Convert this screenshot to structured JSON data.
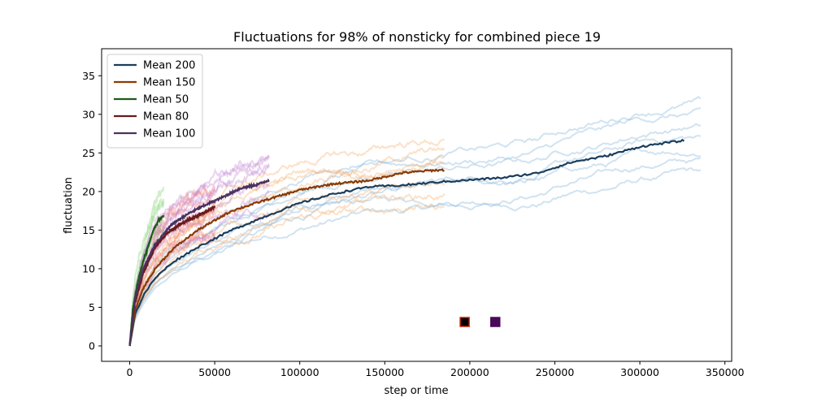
{
  "chart_data": {
    "type": "line",
    "title": "Fluctuations for 98% of nonsticky for combined piece 19",
    "xlabel": "step or time",
    "ylabel": "fluctuation",
    "xlim": [
      -16500,
      354000
    ],
    "ylim": [
      -2,
      38.5
    ],
    "xticks": [
      0,
      50000,
      100000,
      150000,
      200000,
      250000,
      300000,
      350000
    ],
    "yticks": [
      0,
      5,
      10,
      15,
      20,
      25,
      30,
      35
    ],
    "grid": false,
    "legend_position": "top-left",
    "series": [
      {
        "name": "Mean 200",
        "color": "#1a3d5c",
        "band_color": "#7bafd8",
        "points": [
          [
            0,
            0
          ],
          [
            3000,
            4
          ],
          [
            8000,
            6.5
          ],
          [
            15000,
            8.8
          ],
          [
            25000,
            10.8
          ],
          [
            40000,
            12.8
          ],
          [
            60000,
            15
          ],
          [
            80000,
            16.8
          ],
          [
            100000,
            18.5
          ],
          [
            120000,
            19.7
          ],
          [
            140000,
            20.6
          ],
          [
            160000,
            20.8
          ],
          [
            180000,
            21.2
          ],
          [
            200000,
            21.5
          ],
          [
            220000,
            21.8
          ],
          [
            240000,
            22.4
          ],
          [
            260000,
            23.8
          ],
          [
            280000,
            24.6
          ],
          [
            300000,
            25.8
          ],
          [
            315000,
            26.3
          ],
          [
            326000,
            26.6
          ]
        ]
      },
      {
        "name": "Mean 150",
        "color": "#8a3b00",
        "band_color": "#f5a964",
        "points": [
          [
            0,
            0
          ],
          [
            3000,
            4.5
          ],
          [
            8000,
            7.5
          ],
          [
            15000,
            10
          ],
          [
            25000,
            12.5
          ],
          [
            40000,
            15
          ],
          [
            60000,
            17.5
          ],
          [
            80000,
            18.9
          ],
          [
            100000,
            20.2
          ],
          [
            120000,
            21
          ],
          [
            140000,
            21.4
          ],
          [
            160000,
            22.4
          ],
          [
            175000,
            22.7
          ],
          [
            185000,
            22.8
          ]
        ]
      },
      {
        "name": "Mean 50",
        "color": "#1f5a1a",
        "band_color": "#7ccf6e",
        "points": [
          [
            0,
            0
          ],
          [
            2000,
            5
          ],
          [
            5000,
            8.5
          ],
          [
            8000,
            11
          ],
          [
            11000,
            13
          ],
          [
            14000,
            15
          ],
          [
            17000,
            16.3
          ],
          [
            20000,
            16.9
          ]
        ]
      },
      {
        "name": "Mean 80",
        "color": "#6b1a1a",
        "band_color": "#ef7070",
        "points": [
          [
            0,
            0
          ],
          [
            3000,
            5.5
          ],
          [
            8000,
            9.5
          ],
          [
            15000,
            12.8
          ],
          [
            22000,
            14.6
          ],
          [
            30000,
            15.8
          ],
          [
            38000,
            16.7
          ],
          [
            45000,
            17.4
          ],
          [
            50000,
            18
          ]
        ]
      },
      {
        "name": "Mean 100",
        "color": "#4b3160",
        "band_color": "#c080d0",
        "points": [
          [
            0,
            0
          ],
          [
            3000,
            6
          ],
          [
            8000,
            10
          ],
          [
            15000,
            13.2
          ],
          [
            25000,
            15.8
          ],
          [
            35000,
            17.2
          ],
          [
            45000,
            18.3
          ],
          [
            55000,
            19.3
          ],
          [
            65000,
            20.4
          ],
          [
            75000,
            20.9
          ],
          [
            82000,
            21.5
          ]
        ]
      }
    ],
    "markers": [
      {
        "x": 197000,
        "y": 3.1,
        "fill": "#000000",
        "edge": "#cc2200"
      },
      {
        "x": 215000,
        "y": 3.1,
        "fill": "#4a0a5a",
        "edge": "#4a0a5a"
      }
    ]
  }
}
